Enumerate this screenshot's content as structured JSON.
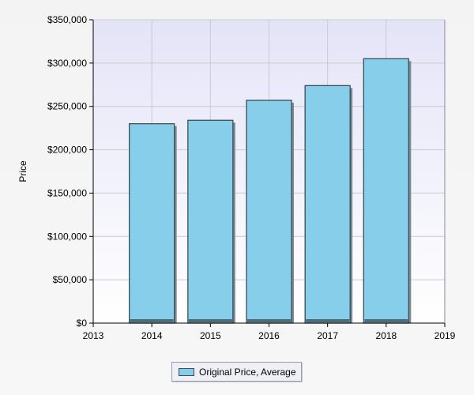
{
  "chart_data": {
    "type": "bar",
    "categories": [
      "2014",
      "2015",
      "2016",
      "2017",
      "2018"
    ],
    "series": [
      {
        "name": "Original Price, Average",
        "values": [
          230000,
          234000,
          257000,
          274000,
          305000
        ]
      }
    ],
    "title": "",
    "xlabel": "",
    "ylabel": "Price",
    "xticks": [
      "2013",
      "2014",
      "2015",
      "2016",
      "2017",
      "2018",
      "2019"
    ],
    "yticks": [
      "$0",
      "$50,000",
      "$100,000",
      "$150,000",
      "$200,000",
      "$250,000",
      "$300,000",
      "$350,000"
    ],
    "ylim": [
      0,
      350000
    ],
    "xlim": [
      2013,
      2019
    ],
    "grid": true,
    "legend_position": "bottom-center",
    "colors": {
      "bar_fill": "#87ceeb",
      "bar_border": "#3b4d58",
      "plot_bg_top": "#e4e4f8",
      "plot_bg_bottom": "#ffffff",
      "grid": "#c9c9d4"
    }
  }
}
